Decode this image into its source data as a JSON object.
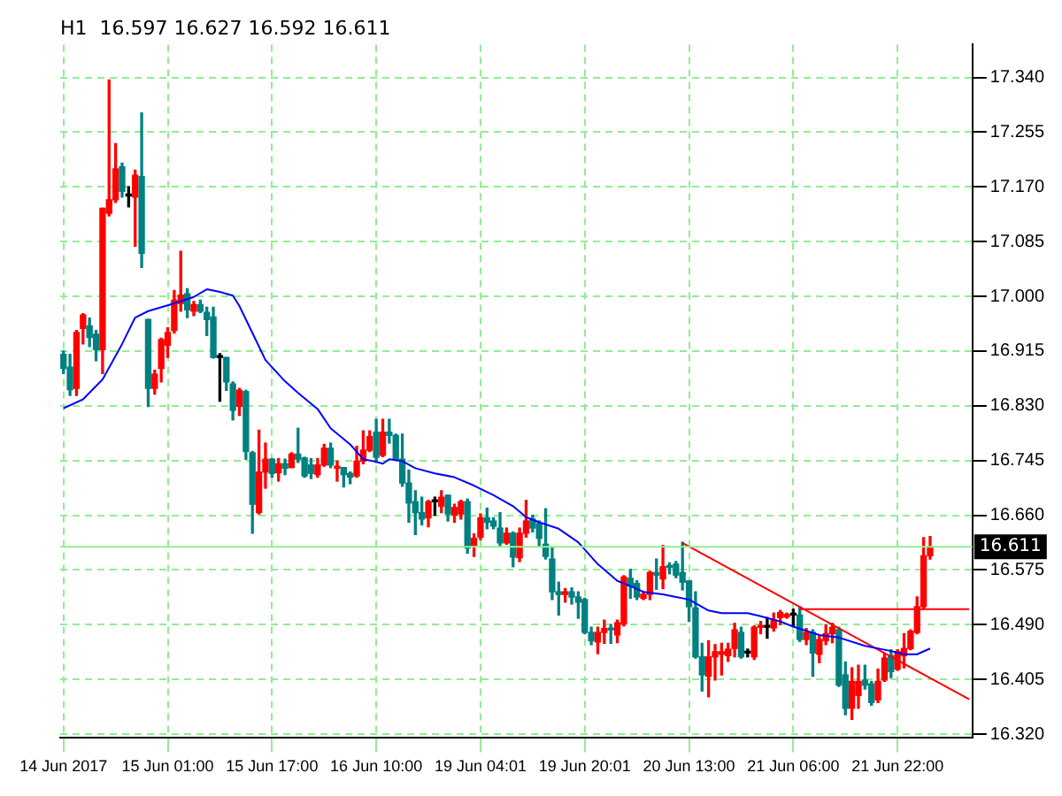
{
  "chart_data": {
    "type": "candlestick",
    "title": "H1  16.597 16.627 16.592 16.611",
    "categories": [
      "14 Jun 2017",
      null,
      null,
      null,
      null,
      null,
      null,
      null,
      null,
      null,
      null,
      null,
      null,
      null,
      null,
      null,
      "15 Jun 01:00",
      null,
      null,
      null,
      null,
      null,
      null,
      null,
      null,
      null,
      null,
      null,
      null,
      null,
      null,
      null,
      "15 Jun 17:00",
      null,
      null,
      null,
      null,
      null,
      null,
      null,
      null,
      null,
      null,
      null,
      null,
      null,
      null,
      null,
      "16 Jun 10:00",
      null,
      null,
      null,
      null,
      null,
      null,
      null,
      null,
      null,
      null,
      null,
      null,
      null,
      null,
      null,
      "19 Jun 04:01",
      null,
      null,
      null,
      null,
      null,
      null,
      null,
      null,
      null,
      null,
      null,
      null,
      null,
      null,
      null,
      "19 Jun 20:01",
      null,
      null,
      null,
      null,
      null,
      null,
      null,
      null,
      null,
      null,
      null,
      null,
      null,
      null,
      null,
      "20 Jun 13:00",
      null,
      null,
      null,
      null,
      null,
      null,
      null,
      null,
      null,
      null,
      null,
      null,
      null,
      null,
      null,
      "21 Jun 06:00",
      null,
      null,
      null,
      null,
      null,
      null,
      null,
      null,
      null,
      null,
      null,
      null,
      null,
      null,
      null,
      "21 Jun 22:00",
      null,
      null,
      null,
      null,
      null,
      null,
      null,
      null,
      null,
      null,
      null
    ],
    "ohlc": [
      [
        16.91,
        16.915,
        16.88,
        16.888
      ],
      [
        16.89,
        16.91,
        16.846,
        16.855
      ],
      [
        16.857,
        16.947,
        16.846,
        16.944
      ],
      [
        16.95,
        16.973,
        16.926,
        16.971
      ],
      [
        16.954,
        16.966,
        16.922,
        16.936
      ],
      [
        16.941,
        16.947,
        16.9,
        16.917
      ],
      [
        16.917,
        17.137,
        16.88,
        17.137
      ],
      [
        17.129,
        17.336,
        17.125,
        17.15
      ],
      [
        17.15,
        17.237,
        17.146,
        17.198
      ],
      [
        17.201,
        17.207,
        17.154,
        17.163
      ],
      [
        17.156,
        17.17,
        17.139,
        17.156
      ],
      [
        17.154,
        17.196,
        17.078,
        17.188
      ],
      [
        17.186,
        17.285,
        17.045,
        17.067
      ],
      [
        16.964,
        16.964,
        16.829,
        16.857
      ],
      [
        16.857,
        16.885,
        16.848,
        16.879
      ],
      [
        16.888,
        16.935,
        16.867,
        16.933
      ],
      [
        16.924,
        16.951,
        16.905,
        16.944
      ],
      [
        16.947,
        17.009,
        16.943,
        16.994
      ],
      [
        16.989,
        17.07,
        16.977,
        17.002
      ],
      [
        17.004,
        17.012,
        16.967,
        16.979
      ],
      [
        16.977,
        16.992,
        16.97,
        16.987
      ],
      [
        16.987,
        16.994,
        16.975,
        16.977
      ],
      [
        16.975,
        16.983,
        16.939,
        16.964
      ],
      [
        16.968,
        16.983,
        16.904,
        16.905
      ],
      [
        16.905,
        16.911,
        16.837,
        16.905
      ],
      [
        16.905,
        16.905,
        16.854,
        16.867
      ],
      [
        16.864,
        16.867,
        16.808,
        16.823
      ],
      [
        16.829,
        16.857,
        16.815,
        16.854
      ],
      [
        16.852,
        16.854,
        16.747,
        16.759
      ],
      [
        16.757,
        16.759,
        16.632,
        16.677
      ],
      [
        16.664,
        16.792,
        16.662,
        16.727
      ],
      [
        16.727,
        16.772,
        16.702,
        16.747
      ],
      [
        16.747,
        16.748,
        16.719,
        16.725
      ],
      [
        16.726,
        16.748,
        16.713,
        16.74
      ],
      [
        16.74,
        16.747,
        16.723,
        16.733
      ],
      [
        16.734,
        16.757,
        16.734,
        16.755
      ],
      [
        16.755,
        16.795,
        16.742,
        16.747
      ],
      [
        16.749,
        16.75,
        16.719,
        16.721
      ],
      [
        16.738,
        16.748,
        16.717,
        16.725
      ],
      [
        16.723,
        16.748,
        16.719,
        16.738
      ],
      [
        16.738,
        16.77,
        16.736,
        16.764
      ],
      [
        16.764,
        16.772,
        16.734,
        16.738
      ],
      [
        16.733,
        16.744,
        16.713,
        16.736
      ],
      [
        16.734,
        16.734,
        16.704,
        16.723
      ],
      [
        16.725,
        16.727,
        16.709,
        16.719
      ],
      [
        16.721,
        16.767,
        16.719,
        16.744
      ],
      [
        16.744,
        16.791,
        16.74,
        16.761
      ],
      [
        16.761,
        16.791,
        16.759,
        16.782
      ],
      [
        16.789,
        16.809,
        16.742,
        16.75
      ],
      [
        16.753,
        16.809,
        16.751,
        16.789
      ],
      [
        16.789,
        16.809,
        16.772,
        16.784
      ],
      [
        16.784,
        16.786,
        16.747,
        16.747
      ],
      [
        16.747,
        16.786,
        16.705,
        16.71
      ],
      [
        16.71,
        16.73,
        16.649,
        16.679
      ],
      [
        16.681,
        16.698,
        16.63,
        16.664
      ],
      [
        16.664,
        16.688,
        16.645,
        16.654
      ],
      [
        16.656,
        16.683,
        16.642,
        16.681
      ],
      [
        16.681,
        16.688,
        16.66,
        16.681
      ],
      [
        16.674,
        16.698,
        16.664,
        16.688
      ],
      [
        16.691,
        16.691,
        16.651,
        16.662
      ],
      [
        16.66,
        16.677,
        16.649,
        16.672
      ],
      [
        16.662,
        16.683,
        16.654,
        16.681
      ],
      [
        16.681,
        16.685,
        16.601,
        16.609
      ],
      [
        16.613,
        16.631,
        16.596,
        16.624
      ],
      [
        16.626,
        16.662,
        16.622,
        16.656
      ],
      [
        16.656,
        16.671,
        16.639,
        16.649
      ],
      [
        16.651,
        16.656,
        16.639,
        16.643
      ],
      [
        16.64,
        16.664,
        16.611,
        16.617
      ],
      [
        16.617,
        16.64,
        16.615,
        16.632
      ],
      [
        16.632,
        16.634,
        16.58,
        16.595
      ],
      [
        16.594,
        16.64,
        16.588,
        16.632
      ],
      [
        16.632,
        16.683,
        16.626,
        16.651
      ],
      [
        16.654,
        16.66,
        16.634,
        16.64
      ],
      [
        16.647,
        16.651,
        16.611,
        16.624
      ],
      [
        16.615,
        16.67,
        16.592,
        16.596
      ],
      [
        16.592,
        16.609,
        16.529,
        16.541
      ],
      [
        16.541,
        16.556,
        16.505,
        16.537
      ],
      [
        16.537,
        16.546,
        16.525,
        16.541
      ],
      [
        16.541,
        16.547,
        16.522,
        16.533
      ],
      [
        16.533,
        16.541,
        16.5,
        16.525
      ],
      [
        16.529,
        16.531,
        16.476,
        16.478
      ],
      [
        16.478,
        16.486,
        16.459,
        16.465
      ],
      [
        16.463,
        16.486,
        16.445,
        16.478
      ],
      [
        16.478,
        16.497,
        16.461,
        16.484
      ],
      [
        16.484,
        16.49,
        16.461,
        16.482
      ],
      [
        16.474,
        16.497,
        16.462,
        16.493
      ],
      [
        16.491,
        16.566,
        16.488,
        16.564
      ],
      [
        16.562,
        16.576,
        16.531,
        16.55
      ],
      [
        16.554,
        16.558,
        16.529,
        16.533
      ],
      [
        16.531,
        16.541,
        16.529,
        16.537
      ],
      [
        16.537,
        16.573,
        16.529,
        16.571
      ],
      [
        16.571,
        16.592,
        16.545,
        16.567
      ],
      [
        16.561,
        16.613,
        16.546,
        16.58
      ],
      [
        16.581,
        16.586,
        16.569,
        16.579
      ],
      [
        16.584,
        16.588,
        16.563,
        16.567
      ],
      [
        16.571,
        16.618,
        16.544,
        16.556
      ],
      [
        16.558,
        16.558,
        16.495,
        16.518
      ],
      [
        16.516,
        16.541,
        16.438,
        16.44
      ],
      [
        16.44,
        16.461,
        16.387,
        16.412
      ],
      [
        16.41,
        16.465,
        16.378,
        16.44
      ],
      [
        16.44,
        16.459,
        16.404,
        16.448
      ],
      [
        16.444,
        16.461,
        16.412,
        16.448
      ],
      [
        16.442,
        16.461,
        16.433,
        16.452
      ],
      [
        16.453,
        16.492,
        16.44,
        16.482
      ],
      [
        16.478,
        16.486,
        16.438,
        16.44
      ],
      [
        16.446,
        16.452,
        16.44,
        16.446
      ],
      [
        16.44,
        16.488,
        16.436,
        16.486
      ],
      [
        16.486,
        16.495,
        16.476,
        16.488
      ],
      [
        16.486,
        16.501,
        16.469,
        16.486
      ],
      [
        16.485,
        16.508,
        16.48,
        16.497
      ],
      [
        16.501,
        16.512,
        16.49,
        16.509
      ],
      [
        16.502,
        16.508,
        16.5,
        16.506
      ],
      [
        16.505,
        16.514,
        16.488,
        16.505
      ],
      [
        16.505,
        16.518,
        16.464,
        16.467
      ],
      [
        16.467,
        16.484,
        16.459,
        16.478
      ],
      [
        16.478,
        16.482,
        16.41,
        16.446
      ],
      [
        16.444,
        16.473,
        16.431,
        16.467
      ],
      [
        16.465,
        16.49,
        16.459,
        16.476
      ],
      [
        16.476,
        16.492,
        16.462,
        16.486
      ],
      [
        16.482,
        16.486,
        16.394,
        16.396
      ],
      [
        16.412,
        16.432,
        16.35,
        16.36
      ],
      [
        16.36,
        16.423,
        16.343,
        16.402
      ],
      [
        16.38,
        16.427,
        16.36,
        16.402
      ],
      [
        16.404,
        16.427,
        16.39,
        16.396
      ],
      [
        16.398,
        16.402,
        16.365,
        16.369
      ],
      [
        16.373,
        16.421,
        16.369,
        16.402
      ],
      [
        16.404,
        16.446,
        16.402,
        16.438
      ],
      [
        16.442,
        16.451,
        16.408,
        16.417
      ],
      [
        16.421,
        16.451,
        16.419,
        16.448
      ],
      [
        16.442,
        16.476,
        16.423,
        16.453
      ],
      [
        16.453,
        16.482,
        16.451,
        16.48
      ],
      [
        16.478,
        16.533,
        16.476,
        16.518
      ],
      [
        16.518,
        16.625,
        16.516,
        16.597
      ],
      [
        16.597,
        16.627,
        16.592,
        16.611
      ],
      null,
      null,
      null,
      null,
      null,
      null
    ],
    "colors": [
      "#008080",
      "#008080",
      "#ff0000",
      "#ff0000",
      "#008080",
      "#008080",
      "#ff0000",
      "#ff0000",
      "#ff0000",
      "#008080",
      "#000000",
      "#ff0000",
      "#008080",
      "#008080",
      "#ff0000",
      "#ff0000",
      "#ff0000",
      "#ff0000",
      "#ff0000",
      "#008080",
      "#ff0000",
      "#008080",
      "#008080",
      "#008080",
      "#000000",
      "#008080",
      "#008080",
      "#ff0000",
      "#008080",
      "#008080",
      "#ff0000",
      "#ff0000",
      "#008080",
      "#ff0000",
      "#008080",
      "#ff0000",
      "#008080",
      "#008080",
      "#008080",
      "#ff0000",
      "#ff0000",
      "#008080",
      "#ff0000",
      "#008080",
      "#008080",
      "#ff0000",
      "#ff0000",
      "#ff0000",
      "#008080",
      "#ff0000",
      "#008080",
      "#008080",
      "#008080",
      "#008080",
      "#008080",
      "#008080",
      "#ff0000",
      "#000000",
      "#ff0000",
      "#008080",
      "#ff0000",
      "#ff0000",
      "#008080",
      "#ff0000",
      "#ff0000",
      "#008080",
      "#008080",
      "#008080",
      "#ff0000",
      "#008080",
      "#ff0000",
      "#ff0000",
      "#008080",
      "#008080",
      "#008080",
      "#008080",
      "#008080",
      "#ff0000",
      "#008080",
      "#008080",
      "#008080",
      "#008080",
      "#ff0000",
      "#ff0000",
      "#008080",
      "#ff0000",
      "#ff0000",
      "#008080",
      "#008080",
      "#ff0000",
      "#ff0000",
      "#008080",
      "#ff0000",
      "#008080",
      "#008080",
      "#008080",
      "#008080",
      "#008080",
      "#008080",
      "#ff0000",
      "#ff0000",
      "#ff0000",
      "#ff0000",
      "#ff0000",
      "#008080",
      "#000000",
      "#ff0000",
      "#ff0000",
      "#000000",
      "#ff0000",
      "#ff0000",
      "#ff0000",
      "#000000",
      "#008080",
      "#ff0000",
      "#008080",
      "#ff0000",
      "#ff0000",
      "#ff0000",
      "#008080",
      "#008080",
      "#ff0000",
      "#ff0000",
      "#008080",
      "#008080",
      "#ff0000",
      "#ff0000",
      "#008080",
      "#ff0000",
      "#ff0000",
      "#ff0000",
      "#ff0000",
      "#ff0000",
      "#ff0000",
      null,
      null,
      null,
      null,
      null,
      null
    ],
    "series": [
      {
        "type": "line",
        "color": "#0000ff",
        "values": [
          16.826,
          null,
          null,
          16.84,
          null,
          null,
          16.871,
          null,
          null,
          16.926,
          null,
          16.967,
          null,
          16.977,
          null,
          null,
          null,
          16.989,
          null,
          null,
          16.999,
          null,
          17.011,
          null,
          17.007,
          null,
          17.001,
          16.985,
          null,
          16.943,
          null,
          16.901,
          null,
          null,
          16.868,
          null,
          16.85,
          null,
          null,
          16.825,
          null,
          16.795,
          null,
          null,
          16.77,
          null,
          16.747,
          null,
          16.743,
          16.74,
          16.747,
          null,
          16.744,
          null,
          16.733,
          null,
          null,
          16.725,
          null,
          null,
          16.719,
          null,
          null,
          16.706,
          null,
          null,
          16.691,
          null,
          null,
          16.674,
          null,
          16.657,
          null,
          16.649,
          null,
          null,
          16.639,
          null,
          null,
          16.618,
          null,
          null,
          16.584,
          null,
          null,
          16.558,
          null,
          16.55,
          null,
          16.541,
          null,
          null,
          16.537,
          null,
          16.533,
          null,
          16.529,
          null,
          null,
          16.512,
          null,
          16.508,
          null,
          null,
          null,
          16.508,
          null,
          16.503,
          null,
          null,
          16.495,
          null,
          16.487,
          null,
          null,
          null,
          16.474,
          null,
          null,
          16.47,
          null,
          null,
          null,
          16.457,
          null,
          null,
          null,
          16.449,
          null,
          16.444,
          null,
          16.444,
          null,
          16.453,
          null,
          null,
          null,
          null,
          null,
          null
        ]
      },
      {
        "type": "line",
        "color": "#ff0000",
        "values": [
          null,
          null,
          null,
          null,
          null,
          null,
          null,
          null,
          null,
          null,
          null,
          null,
          null,
          null,
          null,
          null,
          null,
          null,
          null,
          null,
          null,
          null,
          null,
          null,
          null,
          null,
          null,
          null,
          null,
          null,
          null,
          null,
          null,
          null,
          null,
          null,
          null,
          null,
          null,
          null,
          null,
          null,
          null,
          null,
          null,
          null,
          null,
          null,
          null,
          null,
          null,
          null,
          null,
          null,
          null,
          null,
          null,
          null,
          null,
          null,
          null,
          null,
          null,
          null,
          null,
          null,
          null,
          null,
          null,
          null,
          null,
          null,
          null,
          null,
          null,
          null,
          null,
          null,
          null,
          null,
          null,
          null,
          null,
          null,
          null,
          null,
          null,
          null,
          null,
          null,
          null,
          null,
          null,
          null,
          null,
          16.617,
          null,
          null,
          null,
          null,
          null,
          null,
          null,
          null,
          null,
          null,
          null,
          null,
          null,
          null,
          null,
          null,
          null,
          null,
          null,
          null,
          null,
          null,
          null,
          null,
          null,
          null,
          null,
          null,
          null,
          null,
          null,
          null,
          null,
          null,
          null,
          null,
          null,
          null,
          null,
          null,
          null,
          null,
          null,
          16.374
        ]
      },
      {
        "type": "line",
        "color": "#ff0000",
        "values": [
          null,
          null,
          null,
          null,
          null,
          null,
          null,
          null,
          null,
          null,
          null,
          null,
          null,
          null,
          null,
          null,
          null,
          null,
          null,
          null,
          null,
          null,
          null,
          null,
          null,
          null,
          null,
          null,
          null,
          null,
          null,
          null,
          null,
          null,
          null,
          null,
          null,
          null,
          null,
          null,
          null,
          null,
          null,
          null,
          null,
          null,
          null,
          null,
          null,
          null,
          null,
          null,
          null,
          null,
          null,
          null,
          null,
          null,
          null,
          null,
          null,
          null,
          null,
          null,
          null,
          null,
          null,
          null,
          null,
          null,
          null,
          null,
          null,
          null,
          null,
          null,
          null,
          null,
          null,
          null,
          null,
          null,
          null,
          null,
          null,
          null,
          null,
          null,
          null,
          null,
          null,
          null,
          null,
          null,
          null,
          null,
          null,
          null,
          null,
          null,
          null,
          null,
          null,
          null,
          null,
          null,
          null,
          null,
          null,
          null,
          null,
          null,
          null,
          16.514,
          null,
          null,
          null,
          null,
          null,
          null,
          null,
          null,
          null,
          null,
          null,
          null,
          null,
          null,
          null,
          null,
          null,
          null,
          null,
          null,
          null,
          null,
          null,
          null,
          null,
          16.514
        ]
      }
    ],
    "ylim": [
      16.314,
      17.391
    ],
    "yticks": [
      {
        "value": 16.32,
        "label": "16.320"
      },
      {
        "value": 16.405,
        "label": "16.405"
      },
      {
        "value": 16.49,
        "label": "16.490"
      },
      {
        "value": 16.575,
        "label": "16.575"
      },
      {
        "value": 16.66,
        "label": "16.660"
      },
      {
        "value": 16.745,
        "label": "16.745"
      },
      {
        "value": 16.83,
        "label": "16.830"
      },
      {
        "value": 16.915,
        "label": "16.915"
      },
      {
        "value": 17.0,
        "label": "17.000"
      },
      {
        "value": 17.085,
        "label": "17.085"
      },
      {
        "value": 17.17,
        "label": "17.170"
      },
      {
        "value": 17.255,
        "label": "17.255"
      },
      {
        "value": 17.34,
        "label": "17.340"
      }
    ],
    "grid": true,
    "ref_lines": [
      {
        "axis": "y",
        "value": 16.611,
        "label": "16.611",
        "color": "#90ee90"
      }
    ]
  }
}
